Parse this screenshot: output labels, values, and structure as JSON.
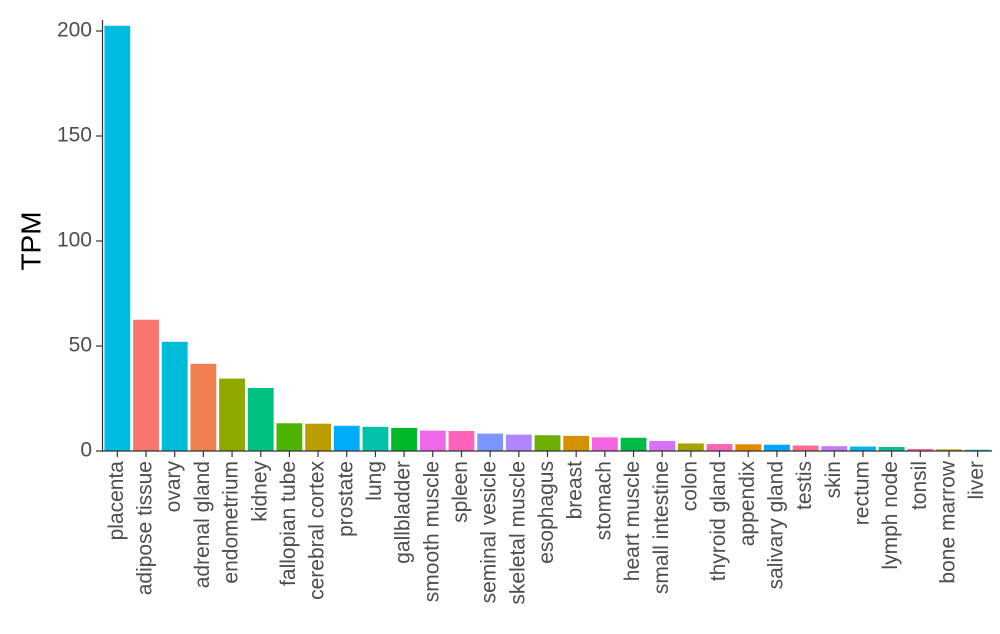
{
  "chart_data": {
    "type": "bar",
    "title": "",
    "xlabel": "",
    "ylabel": "TPM",
    "ylim": [
      0,
      205
    ],
    "yticks": [
      0,
      50,
      100,
      150,
      200
    ],
    "grid": false,
    "legend": "none",
    "categories": [
      "placenta",
      "adipose tissue",
      "ovary",
      "adrenal gland",
      "endometrium",
      "kidney",
      "fallopian tube",
      "cerebral cortex",
      "prostate",
      "lung",
      "gallbladder",
      "smooth muscle",
      "spleen",
      "seminal vesicle",
      "skeletal muscle",
      "esophagus",
      "breast",
      "stomach",
      "heart muscle",
      "small intestine",
      "colon",
      "thyroid gland",
      "appendix",
      "salivary gland",
      "testis",
      "skin",
      "rectum",
      "lymph node",
      "tonsil",
      "bone marrow",
      "liver"
    ],
    "values": [
      202.5,
      62.5,
      52.0,
      41.5,
      34.5,
      30.0,
      13.2,
      13.0,
      12.0,
      11.5,
      11.0,
      9.7,
      9.5,
      8.3,
      7.8,
      7.5,
      7.2,
      6.5,
      6.3,
      4.8,
      3.6,
      3.3,
      3.2,
      3.0,
      2.6,
      2.3,
      2.1,
      1.9,
      1.0,
      0.8,
      0.6
    ],
    "colors": [
      "#00BCE3",
      "#F8766D",
      "#00BCD8",
      "#F07E4E",
      "#8EA800",
      "#00C082",
      "#4CB400",
      "#BC9D00",
      "#00ADFA",
      "#00C1AA",
      "#00B92B",
      "#EF67EB",
      "#FF62BC",
      "#7A97FF",
      "#B086FF",
      "#6DAF00",
      "#D49200",
      "#F365E3",
      "#00BA49",
      "#D970F8",
      "#A6A200",
      "#FF63B6",
      "#E48800",
      "#00A4FF",
      "#FC6C8F",
      "#C27BFF",
      "#00B2F3",
      "#00BE9A",
      "#FF6A98",
      "#C69A00",
      "#00BFC4"
    ]
  }
}
